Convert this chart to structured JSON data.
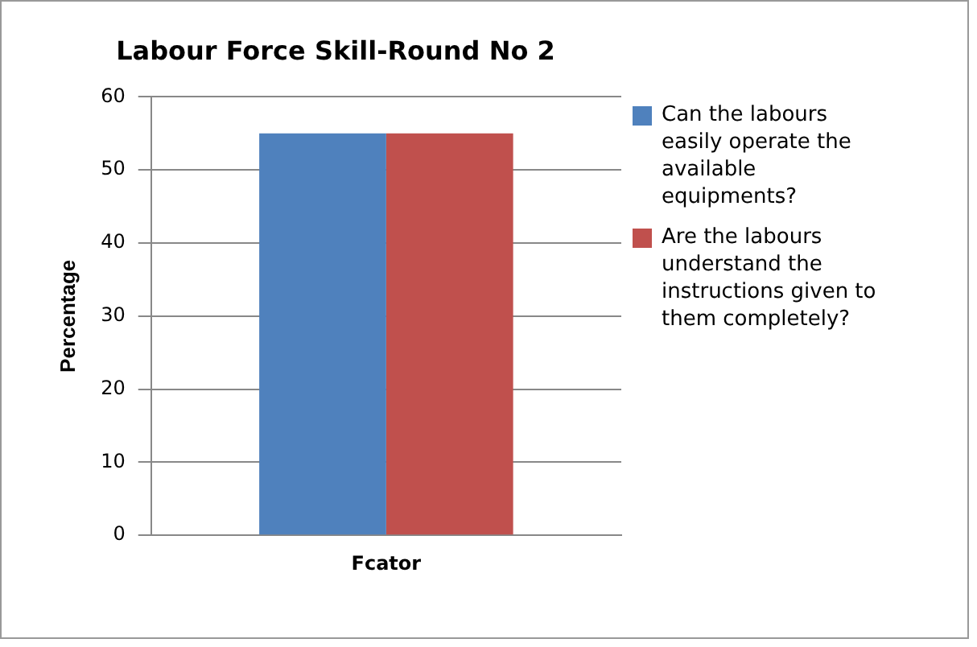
{
  "chart_data": {
    "type": "bar",
    "title": "Labour Force Skill-Round No 2",
    "ylabel": "Percentage",
    "categories": [
      "Fcator"
    ],
    "series": [
      {
        "name": "Can the labours easily operate the available equipments?",
        "color": "#4f81bd",
        "values": [
          55
        ]
      },
      {
        "name": "Are the labours understand the instructions given to them completely?",
        "color": "#c0504d",
        "values": [
          55
        ]
      }
    ],
    "ylim": [
      0,
      60
    ],
    "yticks": [
      0,
      10,
      20,
      30,
      40,
      50,
      60
    ],
    "grid": "y",
    "legend": "right"
  }
}
